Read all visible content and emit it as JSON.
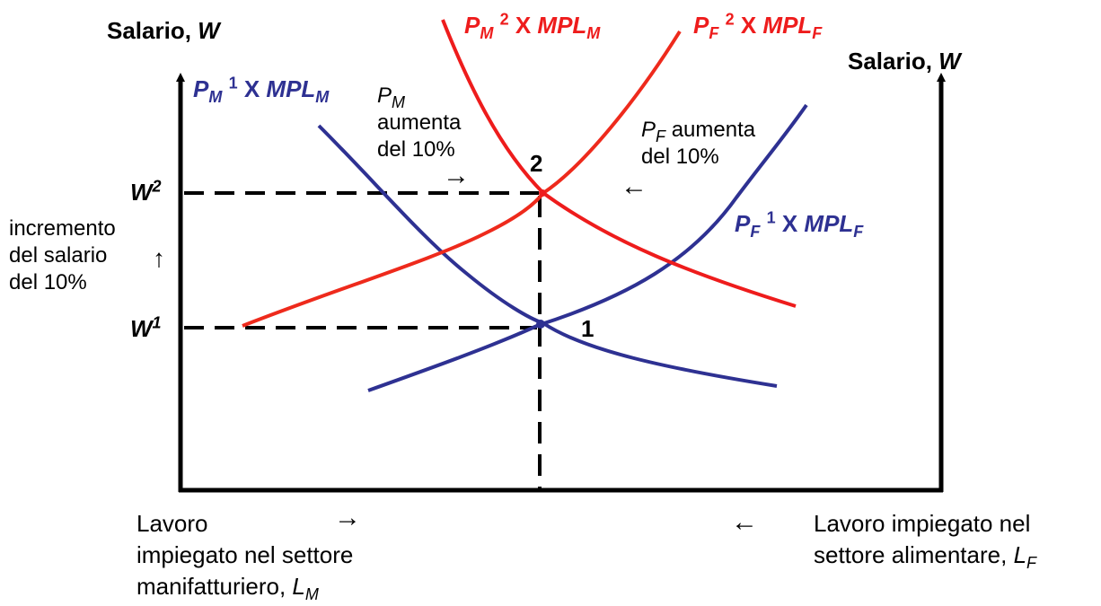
{
  "left_axis": {
    "title": "Salario,",
    "title_var": "W"
  },
  "right_axis": {
    "title": "Salario,",
    "title_var": "W"
  },
  "wage_levels": {
    "w2": {
      "base": "W",
      "sup": "2"
    },
    "w1": {
      "base": "W",
      "sup": "1"
    }
  },
  "wage_increase_note": {
    "lines": [
      "incremento",
      "del salario",
      "del 10%"
    ]
  },
  "curves": {
    "pm1_mplm": {
      "p": "P",
      "p_sub": "M",
      "sup": "1",
      "x": "X",
      "mpl": "MPL",
      "mpl_sub": "M",
      "color": "#2e3192"
    },
    "pm2_mplm": {
      "p": "P",
      "p_sub": "M",
      "sup": "2",
      "x": "X",
      "mpl": "MPL",
      "mpl_sub": "M",
      "color": "#ee1c1c"
    },
    "pf2_mplf": {
      "p": "P",
      "p_sub": "F",
      "sup": "2",
      "x": "X",
      "mpl": "MPL",
      "mpl_sub": "F",
      "color": "#ee1c1c"
    },
    "pf1_mplf": {
      "p": "P",
      "p_sub": "F",
      "sup": "1",
      "x": "X",
      "mpl": "MPL",
      "mpl_sub": "F",
      "color": "#2e3192"
    }
  },
  "annotations": {
    "pm_increase": {
      "var": "P",
      "sub": "M",
      "lines": [
        "aumenta",
        "del 10%"
      ]
    },
    "pf_increase": {
      "var": "P",
      "sub": "F",
      "line1": "aumenta",
      "line2": "del 10%"
    }
  },
  "points": {
    "eq1": "1",
    "eq2": "2"
  },
  "x_axis_left": {
    "lines": [
      "Lavoro",
      "impiegato nel settore",
      "manifatturiero, "
    ],
    "var": "L",
    "sub": "M"
  },
  "x_axis_right": {
    "lines": [
      "Lavoro impiegato nel",
      "settore alimentare, "
    ],
    "var": "L",
    "sub": "F"
  },
  "arrow_glyphs": {
    "right": "→",
    "left": "←",
    "up": "↑"
  }
}
